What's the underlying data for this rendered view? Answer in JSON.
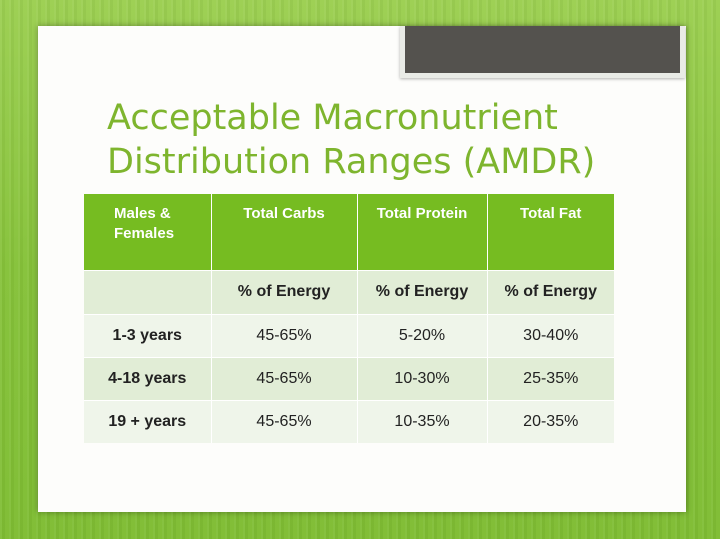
{
  "slide": {
    "title_line1": "Acceptable Macronutrient",
    "title_line2": "Distribution Ranges (AMDR)"
  },
  "table": {
    "headers": {
      "group": [
        "Males &",
        "Females"
      ],
      "carbs": "Total Carbs",
      "protein": "Total Protein",
      "fat": "Total Fat"
    },
    "units": {
      "label": "",
      "carbs": "% of Energy",
      "protein": "% of Energy",
      "fat": "% of Energy"
    },
    "rows": [
      {
        "age": "1-3 years",
        "carbs": "45-65%",
        "protein": "5-20%",
        "fat": "30-40%"
      },
      {
        "age": "4-18 years",
        "carbs": "45-65%",
        "protein": "10-30%",
        "fat": "25-35%"
      },
      {
        "age": "19 + years",
        "carbs": "45-65%",
        "protein": "10-35%",
        "fat": "20-35%"
      }
    ]
  },
  "colors": {
    "background": "#8cc63f",
    "title": "#7eb52e",
    "header": "#76bc21",
    "row_light": "#eff5ea",
    "row_dark": "#e1edd6",
    "accent_bar": "#54524e"
  }
}
